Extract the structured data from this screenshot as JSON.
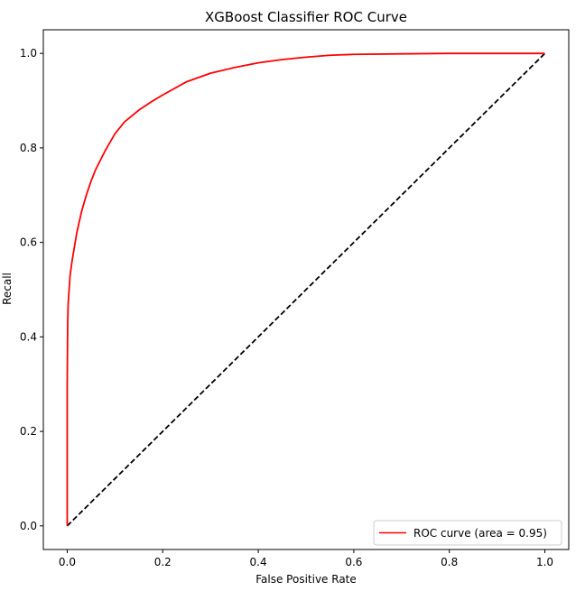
{
  "chart_data": {
    "type": "line",
    "title": "XGBoost Classifier ROC Curve",
    "xlabel": "False Positive Rate",
    "ylabel": "Recall",
    "xlim": [
      -0.05,
      1.05
    ],
    "ylim": [
      -0.05,
      1.05
    ],
    "xticks": [
      0.0,
      0.2,
      0.4,
      0.6,
      0.8,
      1.0
    ],
    "xtick_labels": [
      "0.0",
      "0.2",
      "0.4",
      "0.6",
      "0.8",
      "1.0"
    ],
    "yticks": [
      0.0,
      0.2,
      0.4,
      0.6,
      0.8,
      1.0
    ],
    "ytick_labels": [
      "0.0",
      "0.2",
      "0.4",
      "0.6",
      "0.8",
      "1.0"
    ],
    "grid": false,
    "legend_position": "lower-right",
    "series": [
      {
        "name": "ROC curve (area = 0.95)",
        "color": "#ff0000",
        "line_style": "solid",
        "x": [
          0.0,
          0.0,
          0.001,
          0.002,
          0.004,
          0.006,
          0.01,
          0.015,
          0.02,
          0.03,
          0.04,
          0.05,
          0.06,
          0.08,
          0.1,
          0.12,
          0.15,
          0.18,
          0.2,
          0.25,
          0.3,
          0.35,
          0.4,
          0.45,
          0.5,
          0.55,
          0.6,
          0.7,
          0.8,
          0.9,
          1.0
        ],
        "y": [
          0.0,
          0.3,
          0.43,
          0.47,
          0.5,
          0.53,
          0.56,
          0.59,
          0.62,
          0.665,
          0.7,
          0.73,
          0.755,
          0.795,
          0.83,
          0.855,
          0.88,
          0.9,
          0.912,
          0.94,
          0.958,
          0.97,
          0.98,
          0.987,
          0.992,
          0.996,
          0.998,
          0.999,
          1.0,
          1.0,
          1.0
        ]
      },
      {
        "name": "",
        "color": "#000000",
        "line_style": "dashed",
        "x": [
          0.0,
          1.0
        ],
        "y": [
          0.0,
          1.0
        ]
      }
    ]
  }
}
